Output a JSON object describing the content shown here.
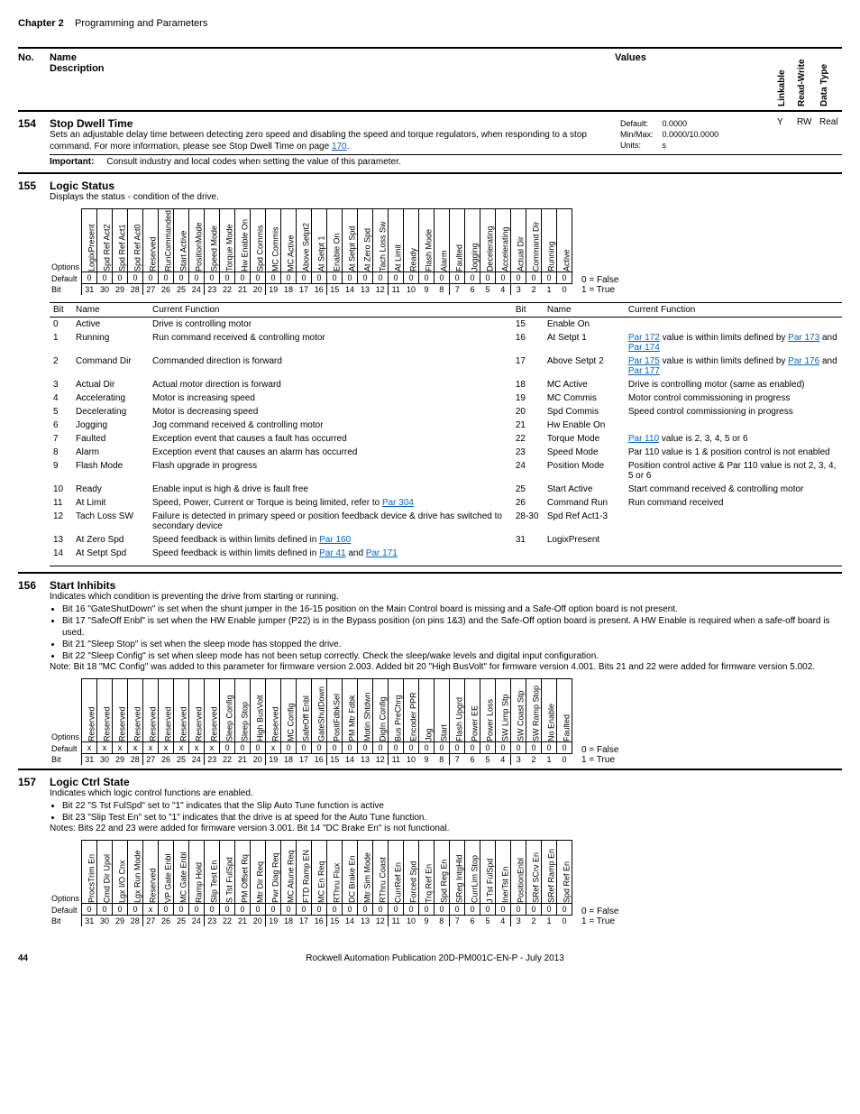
{
  "chapter": {
    "label": "Chapter 2",
    "title": "Programming and Parameters"
  },
  "table_header": {
    "no": "No.",
    "name": "Name",
    "desc": "Description",
    "values": "Values",
    "linkable": "Linkable",
    "rw": "Read-Write",
    "dt": "Data Type"
  },
  "p154": {
    "no": "154",
    "name": "Stop Dwell Time",
    "desc1": "Sets an adjustable delay time between detecting zero speed and disabling the speed and torque regulators, when responding to a stop command. For more information, please see Stop Dwell Time on page ",
    "page_link": "170",
    "desc2": ".",
    "important_label": "Important:",
    "important_text": "Consult industry and local codes when setting the value of this parameter.",
    "vals": {
      "default_l": "Default:",
      "default_v": "0.0000",
      "minmax_l": "Min/Max:",
      "minmax_v": "0.0000/10.0000",
      "units_l": "Units:",
      "units_v": "s"
    },
    "linkable": "Y",
    "rw": "RW",
    "dt": "Real"
  },
  "p155": {
    "no": "155",
    "name": "Logic Status",
    "desc": "Displays the status - condition of the drive.",
    "options_label": "Options",
    "default_label": "Default",
    "bit_label": "Bit",
    "false_note": "0 = False",
    "true_note": "1 = True",
    "bits_labels": [
      "LogixPresent",
      "Spd Ref Act2",
      "Spd Ref Act1",
      "Spd Ref Act0",
      "Reserved",
      "RunCommanded",
      "Start Active",
      "PositionMode",
      "Speed Mode",
      "Torque Mode",
      "Hw Enable On",
      "Spd Commis",
      "MC Commis",
      "MC Active",
      "Above Setpt2",
      "At Setpt 1",
      "Enable On",
      "At Setpt Spd",
      "At Zero Spd",
      "Tach Loss Sw",
      "At Limit",
      "Ready",
      "Flash Mode",
      "Alarm",
      "Faulted",
      "Jogging",
      "Decelerating",
      "Accelerating",
      "Actual Dir",
      "Command Dir",
      "Running",
      "Active"
    ],
    "defaults": [
      "0",
      "0",
      "0",
      "0",
      "0",
      "0",
      "0",
      "0",
      "0",
      "0",
      "0",
      "0",
      "0",
      "0",
      "0",
      "0",
      "0",
      "0",
      "0",
      "0",
      "0",
      "0",
      "0",
      "0",
      "0",
      "0",
      "0",
      "0",
      "0",
      "0",
      "0",
      "0"
    ],
    "bitnums": [
      "31",
      "30",
      "29",
      "28",
      "27",
      "26",
      "25",
      "24",
      "23",
      "22",
      "21",
      "20",
      "19",
      "18",
      "17",
      "16",
      "15",
      "14",
      "13",
      "12",
      "11",
      "10",
      "9",
      "8",
      "7",
      "6",
      "5",
      "4",
      "3",
      "2",
      "1",
      "0"
    ],
    "func_header": {
      "bit": "Bit",
      "name": "Name",
      "cf": "Current Function"
    },
    "left_rows": [
      {
        "b": "0",
        "n": "Active",
        "f": "Drive is controlling motor"
      },
      {
        "b": "1",
        "n": "Running",
        "f": "Run command received & controlling motor"
      },
      {
        "b": "2",
        "n": "Command Dir",
        "f": "Commanded direction is forward"
      },
      {
        "b": "3",
        "n": "Actual Dir",
        "f": "Actual motor direction is forward"
      },
      {
        "b": "4",
        "n": "Accelerating",
        "f": "Motor is increasing speed"
      },
      {
        "b": "5",
        "n": "Decelerating",
        "f": "Motor is decreasing speed"
      },
      {
        "b": "6",
        "n": "Jogging",
        "f": "Jog command received & controlling motor"
      },
      {
        "b": "7",
        "n": "Faulted",
        "f": "Exception event that causes a fault has occurred"
      },
      {
        "b": "8",
        "n": "Alarm",
        "f": "Exception event that causes an alarm has occurred"
      },
      {
        "b": "9",
        "n": "Flash Mode",
        "f": "Flash upgrade in progress"
      },
      {
        "b": "10",
        "n": "Ready",
        "f": "Enable input is high & drive is fault free"
      },
      {
        "b": "11",
        "n": "At Limit",
        "f": "Speed, Power, Current or Torque is being limited, refer to "
      },
      {
        "b": "12",
        "n": "Tach Loss SW",
        "f": "Failure is detected in primary speed or position feedback device & drive has switched to secondary device"
      },
      {
        "b": "13",
        "n": "At Zero Spd",
        "f": "Speed feedback is within limits defined in "
      },
      {
        "b": "14",
        "n": "At Setpt Spd",
        "f": "Speed feedback is within limits defined in "
      }
    ],
    "left_links": {
      "11": "Par 304",
      "13": "Par 160",
      "14a": "Par 41",
      "14b": "Par 171",
      "and": " and "
    },
    "right_rows": [
      {
        "b": "15",
        "n": "Enable On",
        "f": ""
      },
      {
        "b": "16",
        "n": "At Setpt 1",
        "f": ""
      },
      {
        "b": "17",
        "n": "Above Setpt 2",
        "f": ""
      },
      {
        "b": "18",
        "n": "MC Active",
        "f": "Drive is controlling motor (same as enabled)"
      },
      {
        "b": "19",
        "n": "MC Commis",
        "f": "Motor control commissioning in progress"
      },
      {
        "b": "20",
        "n": "Spd Commis",
        "f": "Speed control commissioning in progress"
      },
      {
        "b": "21",
        "n": "Hw Enable On",
        "f": ""
      },
      {
        "b": "22",
        "n": "Torque Mode",
        "f": ""
      },
      {
        "b": "23",
        "n": "Speed Mode",
        "f": "Par 110 value is 1 & position control is not enabled"
      },
      {
        "b": "24",
        "n": "Position Mode",
        "f": "Position control active & Par 110 value is not 2, 3, 4, 5 or 6"
      },
      {
        "b": "25",
        "n": "Start Active",
        "f": "Start command received & controlling motor"
      },
      {
        "b": "26",
        "n": "Command Run",
        "f": "Run command received"
      },
      {
        "b": "28-30",
        "n": "Spd Ref Act1-3",
        "f": ""
      },
      {
        "b": "31",
        "n": "LogixPresent",
        "f": ""
      }
    ],
    "right_links": {
      "16a": "Par 172",
      "16mid": " value is within limits defined by ",
      "16b": "Par 173",
      "16c": "Par 174",
      "17a": "Par 175",
      "17b": "Par 176",
      "17c": "Par 177",
      "22a": "Par 110",
      "22mid": " value is 2, 3, 4, 5 or 6"
    }
  },
  "p156": {
    "no": "156",
    "name": "Start Inhibits",
    "desc": "Indicates which condition is preventing the drive from starting or running.",
    "bullets": [
      "Bit 16 \"GateShutDown\" is set when the shunt jumper in the 16-15 position on the Main Control board is missing and a Safe-Off option board is not present.",
      "Bit 17 \"SafeOff Enbl\" is set when the HW Enable jumper (P22) is in the Bypass position (on pins 1&3) and the Safe-Off option board is present. A HW Enable is required when a safe-off board is used.",
      "Bit 21 \"Sleep Stop\" is set when the sleep mode has stopped the drive.",
      "Bit 22 \"Sleep Config\" is set when sleep mode has not been setup correctly. Check the sleep/wake levels and digital input configuration."
    ],
    "note": "Note: Bit 18 \"MC Config\" was added to this parameter for firmware version 2.003. Added bit 20 \"High BusVolt\" for firmware version 4.001. Bits 21 and 22 were added for firmware version 5.002.",
    "bits_labels": [
      "Reserved",
      "Reserved",
      "Reserved",
      "Reserved",
      "Reserved",
      "Reserved",
      "Reserved",
      "Reserved",
      "Reserved",
      "Sleep Config",
      "Sleep Stop",
      "High BusVolt",
      "Reserved",
      "MC Config",
      "SafeOff Enbl",
      "GateShutDown",
      "PositFdbkSel",
      "PM Mtr Fdbk",
      "Motin Shtdwn",
      "DigIn Config",
      "Bus PreChrg",
      "Encoder PPR",
      "Jog",
      "Start",
      "Flash Upgrd",
      "Power EE",
      "Power Loss",
      "SW Limp Stp",
      "SW Coast Stp",
      "SW Ramp Stop",
      "No Enable",
      "Faulted"
    ],
    "defaults": [
      "x",
      "x",
      "x",
      "x",
      "x",
      "x",
      "x",
      "x",
      "x",
      "0",
      "0",
      "0",
      "x",
      "0",
      "0",
      "0",
      "0",
      "0",
      "0",
      "0",
      "0",
      "0",
      "0",
      "0",
      "0",
      "0",
      "0",
      "0",
      "0",
      "0",
      "0",
      "0"
    ]
  },
  "p157": {
    "no": "157",
    "name": "Logic Ctrl State",
    "desc": "Indicates which logic control functions are enabled.",
    "bullets": [
      "Bit 22 \"S Tst FulSpd\" set to \"1\" indicates that the Slip Auto Tune function is active",
      "Bit 23 \"Slip Test En\" set to \"1\" indicates that the drive is at speed for the Auto Tune function."
    ],
    "note": "Notes: Bits 22 and 23 were added for firmware version 3.001. Bit 14 \"DC Brake En\" is not functional.",
    "bits_labels": [
      "ProcsTrim En",
      "Cmd Dir Upol",
      "Lgx I/O Cnx",
      "Lgx Run Mode",
      "Reserved",
      "VP Gate Enbl",
      "MC Gate Enbl",
      "Ramp Hold",
      "Slip Test En",
      "S Tst FulSpd",
      "PM Offset Rq",
      "Mtr Dir Req",
      "Pwr Diag Req",
      "MC Atune Req",
      "FTD Ramp EN",
      "MC En Req",
      "RThru Flux",
      "DC Brake En",
      "Mtr Sim Mode",
      "RThru Coast",
      "CurrRef En",
      "Forced Spd",
      "Trq Ref En",
      "Spd Reg En",
      "SReg IntgHld",
      "CurrLim Stop",
      "J Tst FulSpd",
      "InerTst En",
      "PositionEnbl",
      "SRef SCrv En",
      "SRef Ramp En",
      "Spd Ref En"
    ],
    "defaults": [
      "0",
      "0",
      "0",
      "0",
      "x",
      "0",
      "0",
      "0",
      "0",
      "0",
      "0",
      "0",
      "0",
      "0",
      "0",
      "0",
      "0",
      "0",
      "0",
      "0",
      "0",
      "0",
      "0",
      "0",
      "0",
      "0",
      "0",
      "0",
      "0",
      "0",
      "0",
      "0"
    ]
  },
  "footer": {
    "page": "44",
    "pub": "Rockwell Automation Publication 20D-PM001C-EN-P - July 2013"
  }
}
